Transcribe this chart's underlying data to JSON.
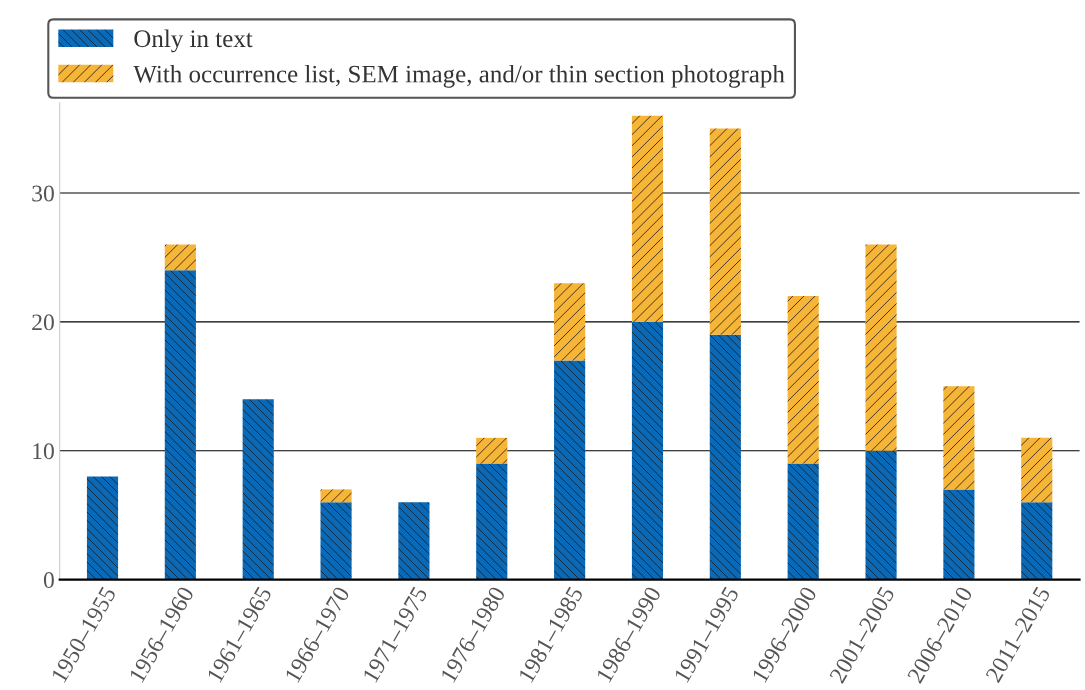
{
  "chart_data": {
    "type": "bar",
    "stacked": true,
    "categories": [
      "1950–1955",
      "1956–1960",
      "1961–1965",
      "1966–1970",
      "1971–1975",
      "1976–1980",
      "1981–1985",
      "1986–1990",
      "1991–1995",
      "1996–2000",
      "2001–2005",
      "2006–2010",
      "2011–2015"
    ],
    "series": [
      {
        "name": "Only in text",
        "color": "#0b6ab8",
        "values": [
          8,
          24,
          14,
          6,
          6,
          9,
          17,
          20,
          19,
          9,
          10,
          7,
          6
        ]
      },
      {
        "name": "With occurrence list, SEM image, and/or thin section photograph",
        "color": "#f7b538",
        "values": [
          0,
          2,
          0,
          1,
          0,
          2,
          6,
          16,
          16,
          13,
          16,
          8,
          5
        ]
      }
    ],
    "ylim": [
      0,
      37
    ],
    "yticks": [
      0,
      10,
      20,
      30
    ],
    "grid": "y",
    "legend": "top left"
  }
}
